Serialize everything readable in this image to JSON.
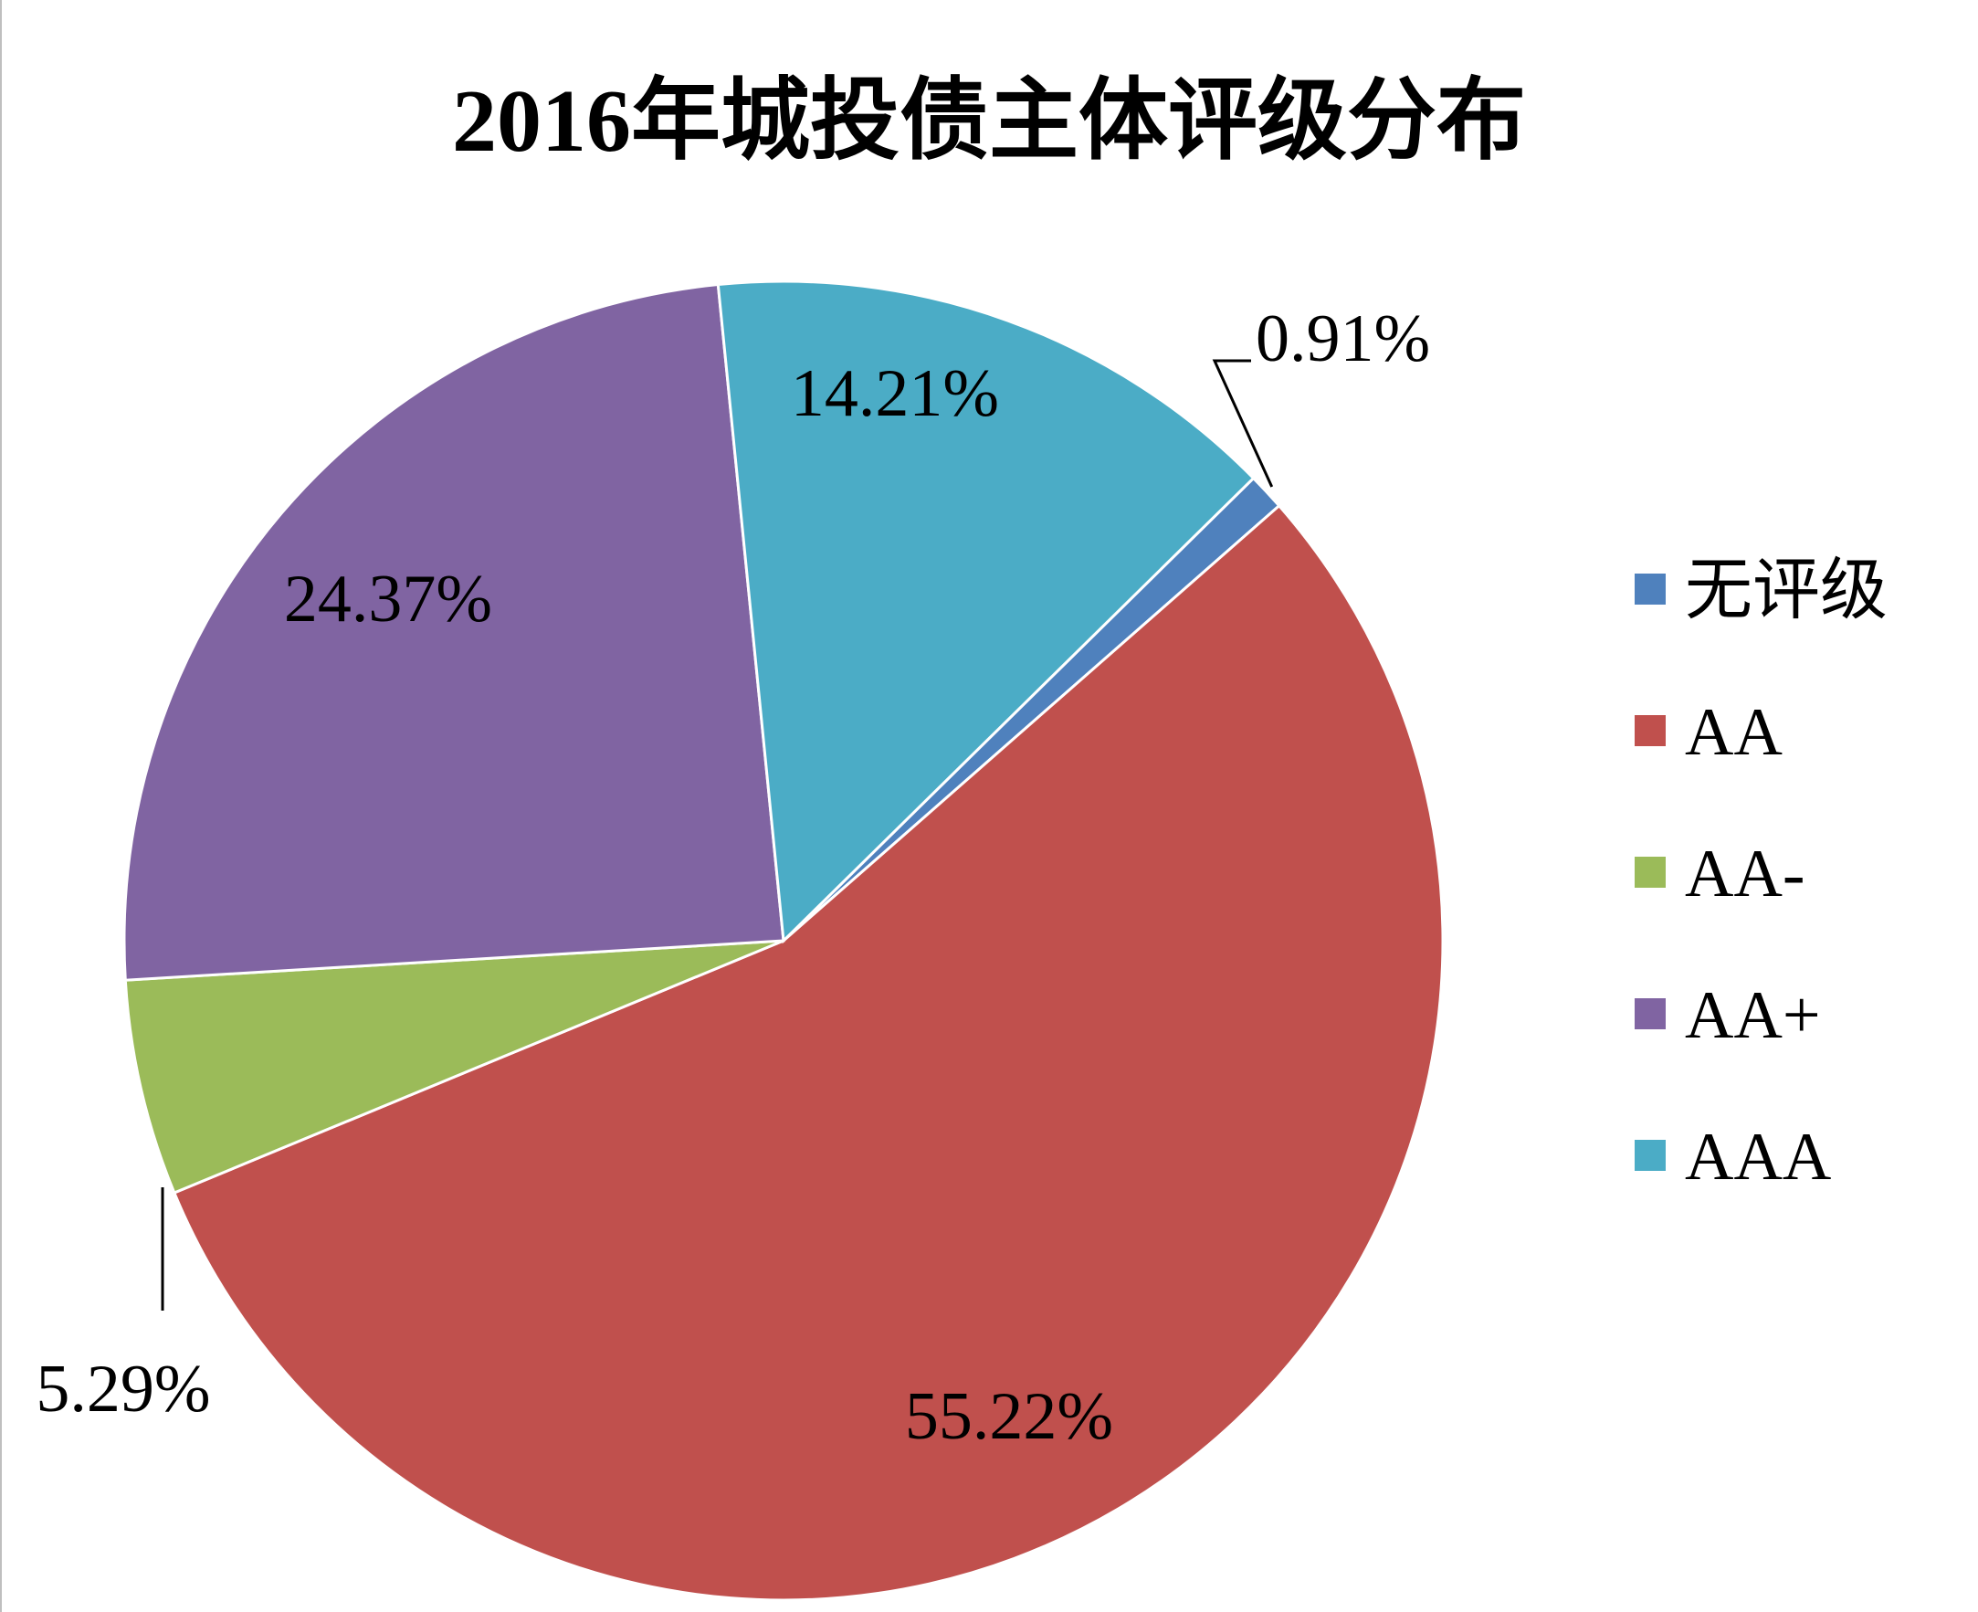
{
  "chart_data": {
    "type": "pie",
    "title": "2016年城投债主体评级分布",
    "categories": [
      "无评级",
      "AA",
      "AA-",
      "AA+",
      "AAA"
    ],
    "values": [
      0.91,
      55.22,
      5.29,
      24.37,
      14.21
    ],
    "value_labels": [
      "0.91%",
      "55.22%",
      "5.29%",
      "24.37%",
      "14.21%"
    ],
    "colors": [
      "#4f81bd",
      "#c0504d",
      "#9bbb59",
      "#8064a2",
      "#4bacc6"
    ],
    "legend": "right"
  }
}
